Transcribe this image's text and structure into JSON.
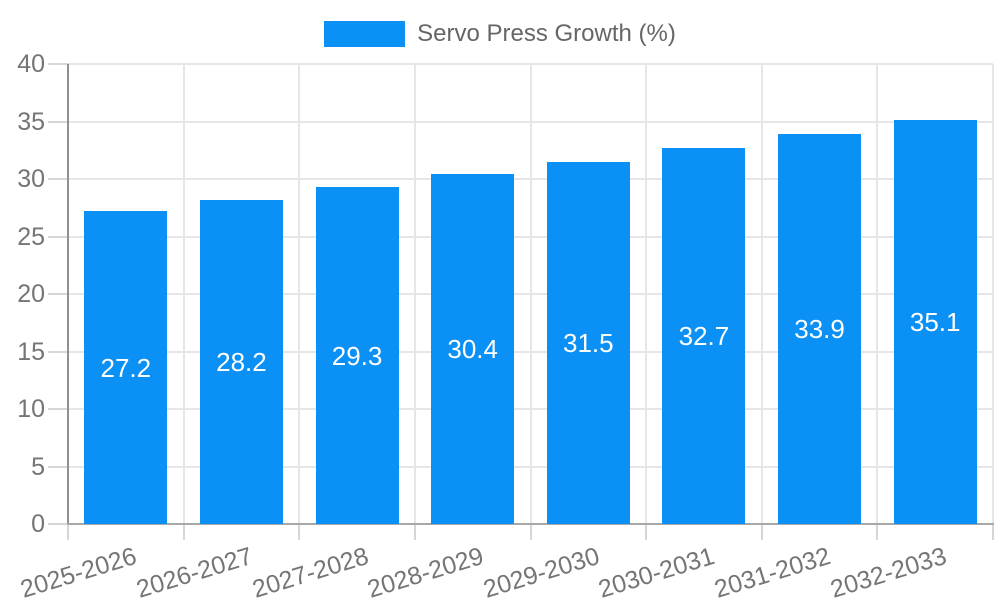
{
  "legend": {
    "label": "Servo Press Growth (%)"
  },
  "colors": {
    "bar": "#0b90f5",
    "grid": "#e6e6e6",
    "tick": "#d6d6d6",
    "axis": "#9a9a9a",
    "tick_text": "#757575",
    "legend_text": "#666666",
    "value_label_text": "#ffffff",
    "background": "#ffffff"
  },
  "chart_data": {
    "type": "bar",
    "title": "",
    "xlabel": "",
    "ylabel": "",
    "series_name": "Servo Press Growth (%)",
    "categories": [
      "2025-2026",
      "2026-2027",
      "2027-2028",
      "2028-2029",
      "2029-2030",
      "2030-2031",
      "2031-2032",
      "2032-2033"
    ],
    "values": [
      27.2,
      28.2,
      29.3,
      30.4,
      31.5,
      32.7,
      33.9,
      35.1
    ],
    "value_labels": [
      "27.2",
      "28.2",
      "29.3",
      "30.4",
      "31.5",
      "32.7",
      "33.9",
      "35.1"
    ],
    "ylim": [
      0,
      40
    ],
    "y_ticks": [
      0,
      5,
      10,
      15,
      20,
      25,
      30,
      35,
      40
    ],
    "grid": true,
    "legend_position": "top",
    "x_label_rotation_deg": -17
  }
}
